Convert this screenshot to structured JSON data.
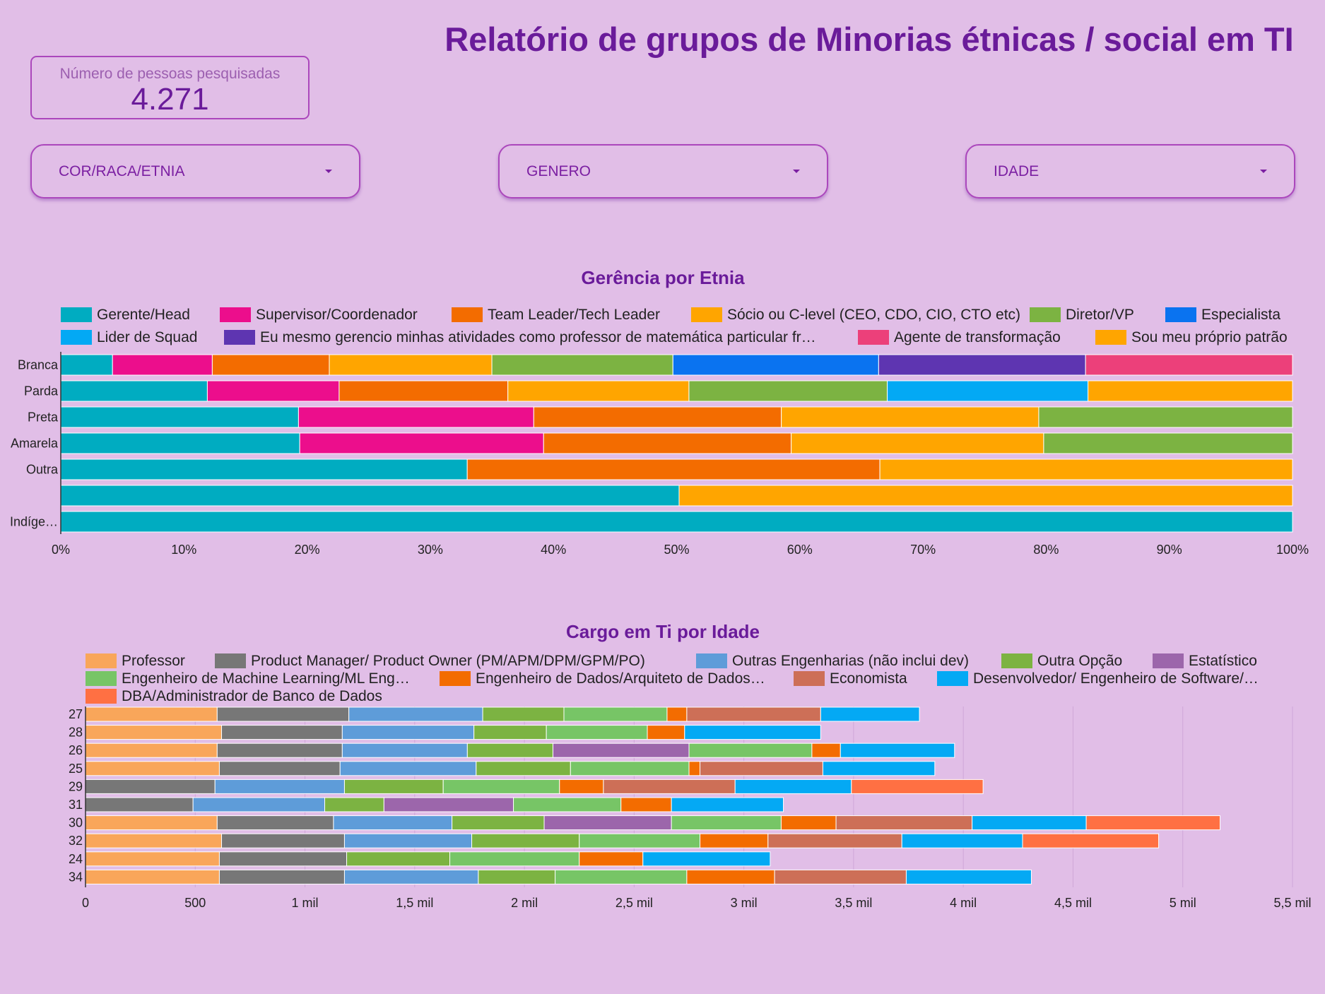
{
  "header": {
    "title": "Relatório de grupos de Minorias étnicas / social em TI"
  },
  "scorecard": {
    "label": "Número de pessoas pesquisadas",
    "value": "4.271"
  },
  "filters": [
    {
      "label": "COR/RACA/ETNIA",
      "icon": "chevron-down-icon"
    },
    {
      "label": "GENERO",
      "icon": "chevron-down-icon"
    },
    {
      "label": "IDADE",
      "icon": "chevron-down-icon"
    }
  ],
  "chart_data": [
    {
      "type": "bar",
      "orientation": "horizontal",
      "stacked": "percent",
      "title": "Gerência por Etnia",
      "legend_position": "top",
      "categories": [
        "Branca",
        "Parda",
        "Preta",
        "Amarela",
        "Outra",
        "",
        "Indíge…"
      ],
      "x_ticks": [
        "0%",
        "10%",
        "20%",
        "30%",
        "40%",
        "50%",
        "60%",
        "70%",
        "80%",
        "90%",
        "100%"
      ],
      "xlim": [
        0,
        100
      ],
      "legend": [
        {
          "name": "Gerente/Head",
          "color": "#00acc1"
        },
        {
          "name": "Supervisor/Coordenador",
          "color": "#ec0e8c"
        },
        {
          "name": "Team Leader/Tech Leader",
          "color": "#f36c00"
        },
        {
          "name": "Sócio ou C-level (CEO, CDO, CIO, CTO etc)",
          "color": "#ffa500"
        },
        {
          "name": "Diretor/VP",
          "color": "#7cb342"
        },
        {
          "name": "Especialista",
          "color": "#0a73f0"
        },
        {
          "name": "Lider de Squad",
          "color": "#03a9f4"
        },
        {
          "name": "Eu mesmo gerencio minhas atividades como professor de matemática particular fr…",
          "color": "#5e35b1"
        },
        {
          "name": "Agente de transformação",
          "color": "#ec407a"
        },
        {
          "name": "Sou meu próprio patrão",
          "color": "#ffa500"
        }
      ],
      "rows": [
        {
          "category": "Branca",
          "segments": [
            {
              "series": "Gerente/Head",
              "value": 4.2
            },
            {
              "series": "Supervisor/Coordenador",
              "value": 8.1
            },
            {
              "series": "Team Leader/Tech Leader",
              "value": 9.5
            },
            {
              "series": "Sócio ou C-level (CEO, CDO, CIO, CTO etc)",
              "value": 13.2
            },
            {
              "series": "Diretor/VP",
              "value": 14.7
            },
            {
              "series": "Especialista",
              "value": 16.7
            },
            {
              "series": "Eu mesmo gerencio minhas atividades como professor de matemática particular fr…",
              "value": 16.8
            },
            {
              "series": "Agente de transformação",
              "value": 16.8
            }
          ]
        },
        {
          "category": "Parda",
          "segments": [
            {
              "series": "Gerente/Head",
              "value": 11.9
            },
            {
              "series": "Supervisor/Coordenador",
              "value": 10.7
            },
            {
              "series": "Team Leader/Tech Leader",
              "value": 13.7
            },
            {
              "series": "Sócio ou C-level (CEO, CDO, CIO, CTO etc)",
              "value": 14.7
            },
            {
              "series": "Diretor/VP",
              "value": 16.1
            },
            {
              "series": "Lider de Squad",
              "value": 16.3
            },
            {
              "series": "Sou meu próprio patrão",
              "value": 16.6
            }
          ]
        },
        {
          "category": "Preta",
          "segments": [
            {
              "series": "Gerente/Head",
              "value": 19.3
            },
            {
              "series": "Supervisor/Coordenador",
              "value": 19.1
            },
            {
              "series": "Team Leader/Tech Leader",
              "value": 20.1
            },
            {
              "series": "Sócio ou C-level (CEO, CDO, CIO, CTO etc)",
              "value": 20.9
            },
            {
              "series": "Diretor/VP",
              "value": 20.6
            }
          ]
        },
        {
          "category": "Amarela",
          "segments": [
            {
              "series": "Gerente/Head",
              "value": 19.4
            },
            {
              "series": "Supervisor/Coordenador",
              "value": 19.8
            },
            {
              "series": "Team Leader/Tech Leader",
              "value": 20.1
            },
            {
              "series": "Sócio ou C-level (CEO, CDO, CIO, CTO etc)",
              "value": 20.5
            },
            {
              "series": "Diretor/VP",
              "value": 20.2
            }
          ]
        },
        {
          "category": "Outra",
          "segments": [
            {
              "series": "Gerente/Head",
              "value": 33.0
            },
            {
              "series": "Team Leader/Tech Leader",
              "value": 33.5
            },
            {
              "series": "Sócio ou C-level (CEO, CDO, CIO, CTO etc)",
              "value": 33.5
            }
          ]
        },
        {
          "category": "",
          "segments": [
            {
              "series": "Gerente/Head",
              "value": 50.2
            },
            {
              "series": "Sócio ou C-level (CEO, CDO, CIO, CTO etc)",
              "value": 49.8
            }
          ]
        },
        {
          "category": "Indíge…",
          "segments": [
            {
              "series": "Gerente/Head",
              "value": 100
            }
          ]
        }
      ]
    },
    {
      "type": "bar",
      "orientation": "horizontal",
      "stacked": "normal",
      "title": "Cargo em Ti por Idade",
      "legend_position": "top",
      "categories": [
        "27",
        "28",
        "26",
        "25",
        "29",
        "31",
        "30",
        "32",
        "24",
        "34"
      ],
      "x_ticks": [
        "0",
        "500",
        "1 mil",
        "1,5 mil",
        "2 mil",
        "2,5 mil",
        "3 mil",
        "3,5 mil",
        "4 mil",
        "4,5 mil",
        "5 mil",
        "5,5 mil"
      ],
      "xlim": [
        0,
        5500
      ],
      "grid": true,
      "legend": [
        {
          "name": "Professor",
          "color": "#f9a65a"
        },
        {
          "name": "Product Manager/ Product Owner (PM/APM/DPM/GPM/PO)",
          "color": "#777777"
        },
        {
          "name": "Outras Engenharias (não inclui dev)",
          "color": "#5e9cd9"
        },
        {
          "name": "Outra Opção",
          "color": "#7cb342"
        },
        {
          "name": "Estatístico",
          "color": "#9c66ab"
        },
        {
          "name": "Engenheiro de Machine Learning/ML Eng…",
          "color": "#77c566"
        },
        {
          "name": "Engenheiro de Dados/Arquiteto de Dados…",
          "color": "#f36c00"
        },
        {
          "name": "Economista",
          "color": "#cd6f57"
        },
        {
          "name": "Desenvolvedor/ Engenheiro de Software/…",
          "color": "#04a9f4"
        },
        {
          "name": "DBA/Administrador de Banco de Dados",
          "color": "#ff7043"
        }
      ],
      "rows": [
        {
          "category": "27",
          "segments": [
            {
              "series": "Professor",
              "value": 600
            },
            {
              "series": "Product Manager/ Product Owner (PM/APM/DPM/GPM/PO)",
              "value": 600
            },
            {
              "series": "Outras Engenharias (não inclui dev)",
              "value": 610
            },
            {
              "series": "Outra Opção",
              "value": 370
            },
            {
              "series": "Engenheiro de Machine Learning/ML Eng…",
              "value": 470
            },
            {
              "series": "Engenheiro de Dados/Arquiteto de Dados…",
              "value": 90
            },
            {
              "series": "Economista",
              "value": 610
            },
            {
              "series": "Desenvolvedor/ Engenheiro de Software/…",
              "value": 450
            }
          ]
        },
        {
          "category": "28",
          "segments": [
            {
              "series": "Professor",
              "value": 620
            },
            {
              "series": "Product Manager/ Product Owner (PM/APM/DPM/GPM/PO)",
              "value": 550
            },
            {
              "series": "Outras Engenharias (não inclui dev)",
              "value": 600
            },
            {
              "series": "Outra Opção",
              "value": 330
            },
            {
              "series": "Engenheiro de Machine Learning/ML Eng…",
              "value": 460
            },
            {
              "series": "Engenheiro de Dados/Arquiteto de Dados…",
              "value": 170
            },
            {
              "series": "Desenvolvedor/ Engenheiro de Software/…",
              "value": 620
            }
          ]
        },
        {
          "category": "26",
          "segments": [
            {
              "series": "Professor",
              "value": 600
            },
            {
              "series": "Product Manager/ Product Owner (PM/APM/DPM/GPM/PO)",
              "value": 570
            },
            {
              "series": "Outras Engenharias (não inclui dev)",
              "value": 570
            },
            {
              "series": "Outra Opção",
              "value": 390
            },
            {
              "series": "Estatístico",
              "value": 620
            },
            {
              "series": "Engenheiro de Machine Learning/ML Eng…",
              "value": 560
            },
            {
              "series": "Engenheiro de Dados/Arquiteto de Dados…",
              "value": 130
            },
            {
              "series": "Desenvolvedor/ Engenheiro de Software/…",
              "value": 520
            }
          ]
        },
        {
          "category": "25",
          "segments": [
            {
              "series": "Professor",
              "value": 610
            },
            {
              "series": "Product Manager/ Product Owner (PM/APM/DPM/GPM/PO)",
              "value": 550
            },
            {
              "series": "Outras Engenharias (não inclui dev)",
              "value": 620
            },
            {
              "series": "Outra Opção",
              "value": 430
            },
            {
              "series": "Engenheiro de Machine Learning/ML Eng…",
              "value": 540
            },
            {
              "series": "Engenheiro de Dados/Arquiteto de Dados…",
              "value": 50
            },
            {
              "series": "Economista",
              "value": 560
            },
            {
              "series": "Desenvolvedor/ Engenheiro de Software/…",
              "value": 510
            }
          ]
        },
        {
          "category": "29",
          "segments": [
            {
              "series": "Product Manager/ Product Owner (PM/APM/DPM/GPM/PO)",
              "value": 590
            },
            {
              "series": "Outras Engenharias (não inclui dev)",
              "value": 590
            },
            {
              "series": "Outra Opção",
              "value": 450
            },
            {
              "series": "Engenheiro de Machine Learning/ML Eng…",
              "value": 530
            },
            {
              "series": "Engenheiro de Dados/Arquiteto de Dados…",
              "value": 200
            },
            {
              "series": "Economista",
              "value": 600
            },
            {
              "series": "Desenvolvedor/ Engenheiro de Software/…",
              "value": 530
            },
            {
              "series": "DBA/Administrador de Banco de Dados",
              "value": 600
            }
          ]
        },
        {
          "category": "31",
          "segments": [
            {
              "series": "Product Manager/ Product Owner (PM/APM/DPM/GPM/PO)",
              "value": 490
            },
            {
              "series": "Outras Engenharias (não inclui dev)",
              "value": 600
            },
            {
              "series": "Outra Opção",
              "value": 270
            },
            {
              "series": "Estatístico",
              "value": 590
            },
            {
              "series": "Engenheiro de Machine Learning/ML Eng…",
              "value": 490
            },
            {
              "series": "Engenheiro de Dados/Arquiteto de Dados…",
              "value": 230
            },
            {
              "series": "Desenvolvedor/ Engenheiro de Software/…",
              "value": 510
            }
          ]
        },
        {
          "category": "30",
          "segments": [
            {
              "series": "Professor",
              "value": 600
            },
            {
              "series": "Product Manager/ Product Owner (PM/APM/DPM/GPM/PO)",
              "value": 530
            },
            {
              "series": "Outras Engenharias (não inclui dev)",
              "value": 540
            },
            {
              "series": "Outra Opção",
              "value": 420
            },
            {
              "series": "Estatístico",
              "value": 580
            },
            {
              "series": "Engenheiro de Machine Learning/ML Eng…",
              "value": 500
            },
            {
              "series": "Engenheiro de Dados/Arquiteto de Dados…",
              "value": 250
            },
            {
              "series": "Economista",
              "value": 620
            },
            {
              "series": "Desenvolvedor/ Engenheiro de Software/…",
              "value": 520
            },
            {
              "series": "DBA/Administrador de Banco de Dados",
              "value": 610
            }
          ]
        },
        {
          "category": "32",
          "segments": [
            {
              "series": "Professor",
              "value": 620
            },
            {
              "series": "Product Manager/ Product Owner (PM/APM/DPM/GPM/PO)",
              "value": 560
            },
            {
              "series": "Outras Engenharias (não inclui dev)",
              "value": 580
            },
            {
              "series": "Outra Opção",
              "value": 490
            },
            {
              "series": "Engenheiro de Machine Learning/ML Eng…",
              "value": 550
            },
            {
              "series": "Engenheiro de Dados/Arquiteto de Dados…",
              "value": 310
            },
            {
              "series": "Economista",
              "value": 610
            },
            {
              "series": "Desenvolvedor/ Engenheiro de Software/…",
              "value": 550
            },
            {
              "series": "DBA/Administrador de Banco de Dados",
              "value": 620
            }
          ]
        },
        {
          "category": "24",
          "segments": [
            {
              "series": "Professor",
              "value": 610
            },
            {
              "series": "Product Manager/ Product Owner (PM/APM/DPM/GPM/PO)",
              "value": 580
            },
            {
              "series": "Outra Opção",
              "value": 470
            },
            {
              "series": "Engenheiro de Machine Learning/ML Eng…",
              "value": 590
            },
            {
              "series": "Engenheiro de Dados/Arquiteto de Dados…",
              "value": 290
            },
            {
              "series": "Desenvolvedor/ Engenheiro de Software/…",
              "value": 580
            }
          ]
        },
        {
          "category": "34",
          "segments": [
            {
              "series": "Professor",
              "value": 610
            },
            {
              "series": "Product Manager/ Product Owner (PM/APM/DPM/GPM/PO)",
              "value": 570
            },
            {
              "series": "Outras Engenharias (não inclui dev)",
              "value": 610
            },
            {
              "series": "Outra Opção",
              "value": 350
            },
            {
              "series": "Engenheiro de Machine Learning/ML Eng…",
              "value": 600
            },
            {
              "series": "Engenheiro de Dados/Arquiteto de Dados…",
              "value": 400
            },
            {
              "series": "Economista",
              "value": 600
            },
            {
              "series": "Desenvolvedor/ Engenheiro de Software/…",
              "value": 570
            }
          ]
        }
      ]
    }
  ]
}
